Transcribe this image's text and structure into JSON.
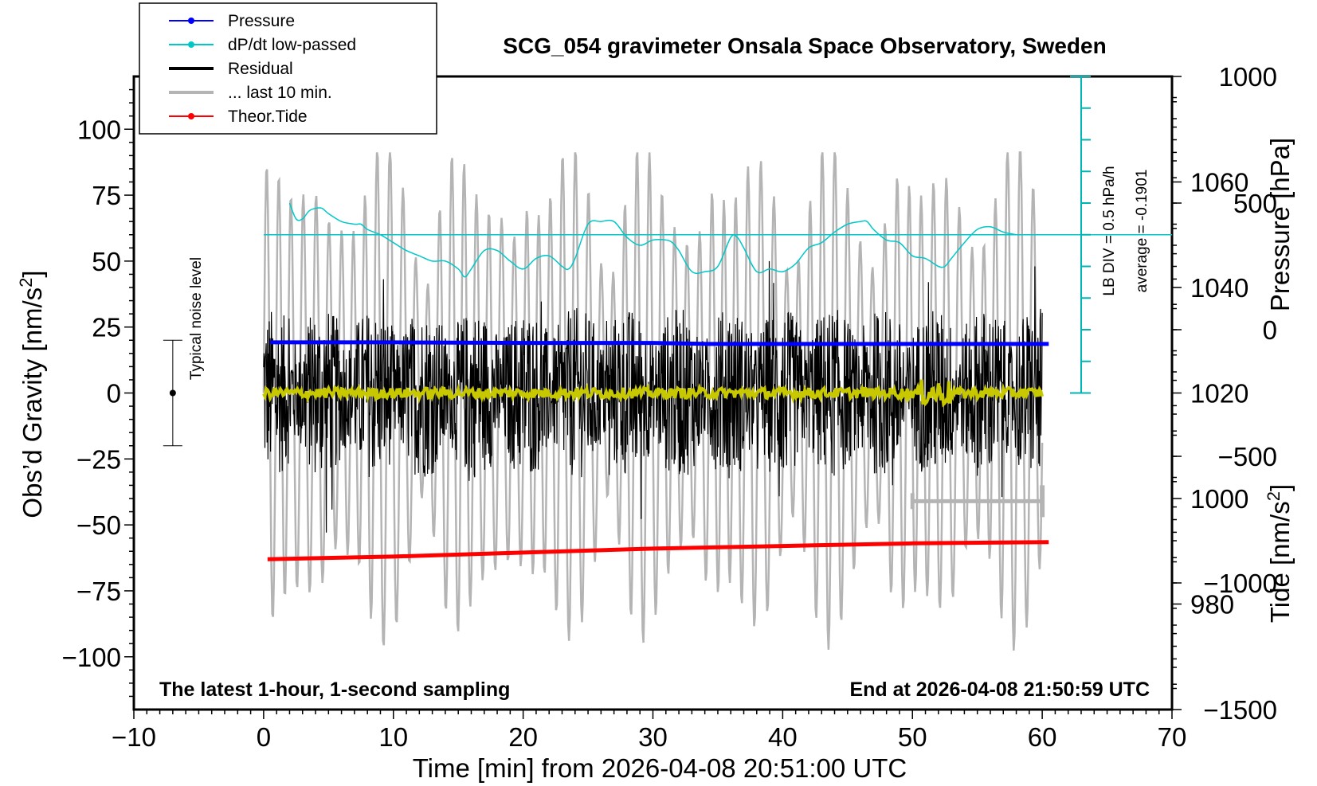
{
  "chart_data": {
    "type": "line",
    "title": "SCG_054 gravimeter Onsala Space Observatory, Sweden",
    "xlabel": "Time [min] from 2026-04-08 20:51:00 UTC",
    "xlim": [
      -10,
      70
    ],
    "x_ticks": [
      -10,
      0,
      10,
      20,
      30,
      40,
      50,
      60,
      70
    ],
    "x_tick_labels": [
      "−10",
      "0",
      "10",
      "20",
      "30",
      "40",
      "50",
      "60",
      "70"
    ],
    "left_axis": {
      "label": "Obs’d Gravity [nm/s",
      "label_sup": "2",
      "label_end": "]",
      "ylim": [
        -120,
        120
      ],
      "ticks": [
        100,
        75,
        50,
        25,
        0,
        -25,
        -50,
        -75,
        -100
      ],
      "tick_labels": [
        "100",
        "75",
        "50",
        "25",
        "0",
        "−25",
        "−50",
        "−75",
        "−100"
      ]
    },
    "right_pressure_axis": {
      "label": "Pressure [hPa]",
      "ylim": [
        960,
        1080
      ],
      "ticks": [
        1060,
        1040,
        1020,
        1000,
        980
      ],
      "tick_labels": [
        "1060",
        "1040",
        "1020",
        "1000",
        "980"
      ]
    },
    "right_tide_axis": {
      "label": "Tide [nm/s",
      "label_sup": "2",
      "label_end": "]",
      "ylim": [
        -1500,
        1000
      ],
      "ticks": [
        1000,
        500,
        0,
        -500,
        -1000,
        -1500
      ],
      "tick_labels": [
        "1000",
        "500",
        "0",
        "−500",
        "−1000",
        "−1500"
      ]
    },
    "legend": {
      "position": "top-left",
      "entries": [
        {
          "label": "Pressure",
          "color": "#0000ff",
          "marker": "dot"
        },
        {
          "label": "dP/dt low-passed",
          "color": "#00c8c8",
          "marker": "dot"
        },
        {
          "label": "Residual",
          "color": "#000000",
          "marker": "none"
        },
        {
          "label": "... last 10 min.",
          "color": "#b4b4b4",
          "marker": "none"
        },
        {
          "label": "Theor.Tide",
          "color": "#ff0000",
          "marker": "dot"
        }
      ]
    },
    "series": [
      {
        "name": "Pressure",
        "axis": "pressure",
        "color": "#0000ff",
        "x": [
          0.5,
          10,
          20,
          30,
          34.5,
          40,
          50,
          60.5
        ],
        "values": [
          1029.6,
          1029.6,
          1029.5,
          1029.5,
          1029.3,
          1029.3,
          1029.3,
          1029.3
        ]
      },
      {
        "name": "dP/dt low-passed",
        "axis": "gravity",
        "color": "#00c8c8",
        "x": [
          2,
          2.5,
          3,
          3.5,
          4,
          4.5,
          5,
          6,
          7,
          7.5,
          8,
          9,
          10,
          11,
          12,
          13,
          14,
          15,
          15.5,
          16,
          17,
          18,
          19,
          20,
          21,
          22,
          23,
          23.5,
          24,
          25,
          26,
          27,
          28,
          29,
          30,
          31,
          31.5,
          32,
          33,
          34,
          35,
          36,
          36.5,
          37,
          38,
          39,
          40,
          41,
          42,
          43,
          44,
          45,
          46,
          46.5,
          47,
          48,
          49,
          50,
          51,
          52,
          52.5,
          53,
          54,
          55,
          56,
          57,
          58
        ],
        "values": [
          72,
          66,
          66,
          69,
          70,
          70,
          68,
          65,
          64,
          64,
          62,
          60,
          57,
          54,
          52,
          50,
          50,
          47,
          44,
          47,
          54,
          54,
          50,
          47,
          51,
          52,
          48,
          47,
          51,
          64,
          65,
          65,
          59,
          56,
          58,
          58,
          57,
          54,
          46,
          46,
          48,
          59,
          59,
          55,
          46,
          47,
          46,
          49,
          55,
          57,
          61,
          64,
          65,
          65,
          62,
          58,
          57,
          52,
          51,
          48,
          48,
          51,
          57,
          62,
          63,
          61,
          60
        ]
      },
      {
        "name": "dP/dt average line",
        "axis": "gravity",
        "color": "#00c8c8",
        "x": [
          0,
          70
        ],
        "values": [
          60,
          60
        ]
      },
      {
        "name": "Residual",
        "axis": "gravity",
        "color": "#000000",
        "x_range": [
          0,
          60
        ],
        "amplitude_typical": 25,
        "amplitude_max": 50
      },
      {
        "name": "Residual low-passed",
        "axis": "gravity",
        "color": "#c8c800",
        "x_range": [
          0,
          60
        ],
        "values_approx": 0,
        "amplitude_typical": 2
      },
      {
        "name": "... last 10 min.",
        "axis": "tide",
        "color": "#b4b4b4",
        "x_range": [
          0,
          60
        ],
        "amplitude_typical": 900,
        "amplitude_max": 1500
      },
      {
        "name": "Theor.Tide",
        "axis": "gravity",
        "color": "#ff0000",
        "x": [
          0.3,
          10,
          20,
          30,
          40,
          50,
          60.5
        ],
        "values": [
          -63,
          -62,
          -60.5,
          -59,
          -58,
          -57,
          -56.5
        ]
      }
    ],
    "annotations": {
      "noise_label": "Typical noise level",
      "noise_bar": {
        "x": -7,
        "center": 0,
        "low": -20,
        "high": 20
      },
      "last10_bracket": {
        "x_start": 50,
        "x_end": 60,
        "y": -41
      },
      "scale_bar_label": "LB DIV = 0.5 hPa/h",
      "average_label": "average = -0.1901",
      "bottom_left_note": "The latest 1-hour, 1-second sampling",
      "bottom_right_note": "End at 2026-04-08 21:50:59 UTC"
    }
  }
}
